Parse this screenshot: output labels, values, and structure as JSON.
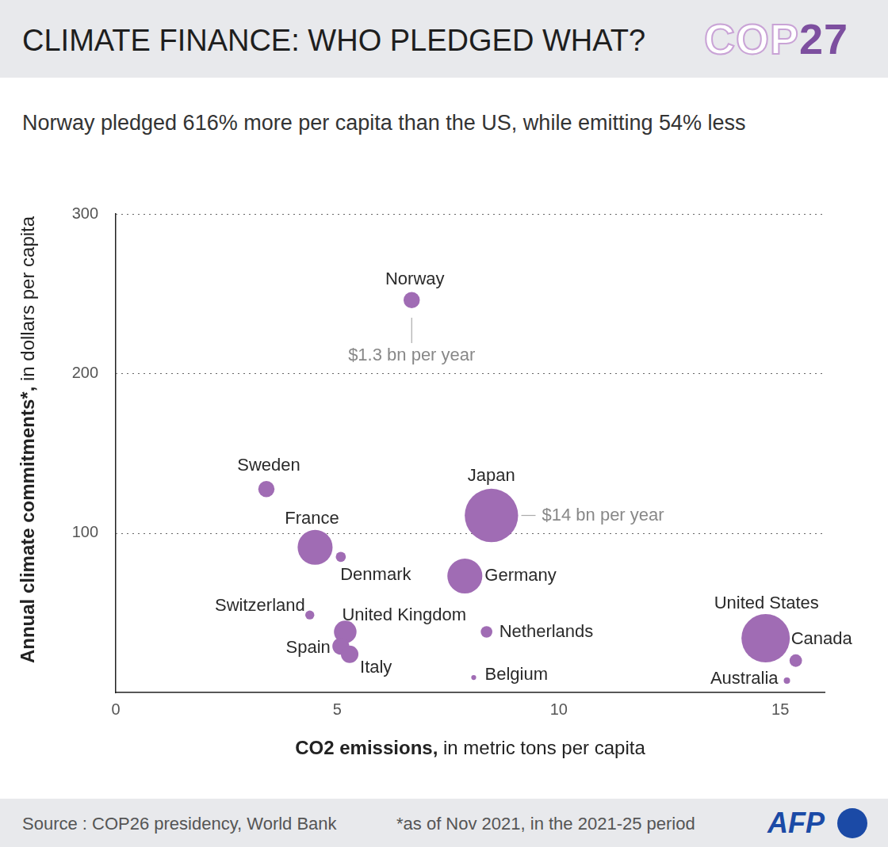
{
  "header": {
    "title": "CLIMATE FINANCE: WHO PLEDGED WHAT?",
    "logo_text": "COP",
    "logo_number": "27"
  },
  "chart_data": {
    "type": "bubble",
    "subtitle": "Norway pledged 616% more per capita than the US, while emitting 54% less",
    "x_label": "CO2 emissions, in metric tons per capita",
    "y_label": "Annual climate commitments*, in dollars per capita",
    "categories": [
      "Norway",
      "Sweden",
      "Japan",
      "France",
      "Denmark",
      "Germany",
      "Switzerland",
      "United Kingdom",
      "Netherlands",
      "Spain",
      "Italy",
      "Belgium",
      "United States",
      "Canada",
      "Australia"
    ],
    "x": [
      6.68,
      3.4,
      8.48,
      4.5,
      5.08,
      7.88,
      4.38,
      5.18,
      8.37,
      5.08,
      5.28,
      8.08,
      14.67,
      15.35,
      15.15
    ],
    "values": [
      246,
      127.5,
      111,
      91,
      85,
      73,
      48.6,
      38,
      38,
      29,
      24,
      9.4,
      34,
      20,
      7.5
    ],
    "sizes": [
      1.3,
      1.3,
      14,
      6,
      0.5,
      6,
      0.4,
      2.5,
      0.66,
      1.4,
      1.5,
      0.12,
      11.5,
      0.77,
      0.2
    ],
    "color": "#a06cb4",
    "xlim": [
      0,
      16
    ],
    "xticks": [
      0,
      5,
      10,
      15
    ],
    "ylim": [
      0,
      300
    ],
    "yticks": [
      100,
      200,
      300
    ],
    "grid": true,
    "annotations": [
      {
        "text": "$1.3 bn per year",
        "country": "Norway"
      },
      {
        "text": "$14 bn per year",
        "country": "Japan"
      }
    ]
  },
  "footer": {
    "source": "Source : COP26 presidency, World Bank",
    "note": "*as of Nov 2021, in the 2021-25 period",
    "brand": "AFP"
  }
}
